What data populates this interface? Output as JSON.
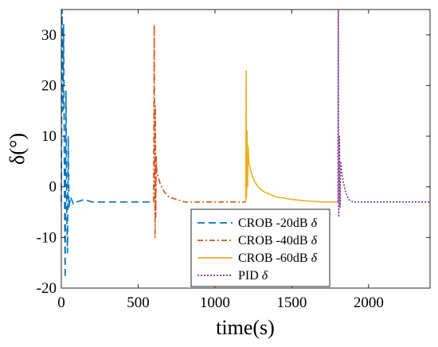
{
  "chart_data": {
    "type": "line",
    "xlabel": "time(s)",
    "ylabel": "δ(°)",
    "xlim": [
      0,
      2400
    ],
    "ylim": [
      -20,
      35
    ],
    "xticks": [
      "0",
      "500",
      "1000",
      "1500",
      "2000"
    ],
    "yticks": [
      "-20",
      "-10",
      "0",
      "10",
      "20",
      "30"
    ],
    "grid": false,
    "legend_position": "bottom-right",
    "series": [
      {
        "name": "CROB -20dB δ",
        "legend_label": "CROB -20dB",
        "legend_symbol": "δ",
        "color": "#0072BD",
        "style": "dashed",
        "x": [
          0,
          5,
          10,
          15,
          20,
          25,
          30,
          35,
          40,
          45,
          50,
          60,
          80,
          100,
          150,
          200,
          300,
          400,
          500,
          600
        ],
        "y": [
          -3,
          35,
          15,
          32,
          0,
          -18,
          19,
          -5,
          -13,
          10,
          -4,
          -2,
          -3.5,
          -3,
          -2.5,
          -3,
          -3,
          -3,
          -3,
          -3
        ]
      },
      {
        "name": "CROB -40dB δ",
        "legend_label": "CROB -40dB",
        "legend_symbol": "δ",
        "color": "#D95319",
        "style": "dashdot",
        "x": [
          600,
          605,
          610,
          612,
          615,
          618,
          622,
          630,
          645,
          670,
          700,
          750,
          800,
          900,
          1000,
          1100,
          1200
        ],
        "y": [
          -3,
          32,
          -10,
          16,
          -6,
          6,
          3,
          2,
          0.5,
          -1,
          -2,
          -2.5,
          -3,
          -3,
          -3,
          -3,
          -3
        ]
      },
      {
        "name": "CROB -60dB δ",
        "legend_label": "CROB -60dB",
        "legend_symbol": "δ",
        "color": "#EDB120",
        "style": "solid",
        "x": [
          1200,
          1203,
          1206,
          1210,
          1213,
          1216,
          1220,
          1230,
          1250,
          1280,
          1320,
          1400,
          1500,
          1600,
          1700,
          1800
        ],
        "y": [
          -3,
          23,
          -2,
          11,
          0,
          8,
          5,
          3.5,
          1.5,
          0,
          -1,
          -2,
          -2.5,
          -2.8,
          -3,
          -3
        ]
      },
      {
        "name": "PID δ",
        "legend_label": "PID",
        "legend_symbol": "δ",
        "color": "#7E2F8E",
        "style": "dotted",
        "x": [
          1800,
          1803,
          1806,
          1810,
          1814,
          1818,
          1825,
          1835,
          1850,
          1870,
          1900,
          2000,
          2100,
          2200,
          2300,
          2400
        ],
        "y": [
          -3,
          35,
          -6,
          10,
          -4,
          5,
          3,
          1,
          -1,
          -2.5,
          -3,
          -3,
          -3,
          -3,
          -3,
          -3
        ]
      }
    ]
  }
}
